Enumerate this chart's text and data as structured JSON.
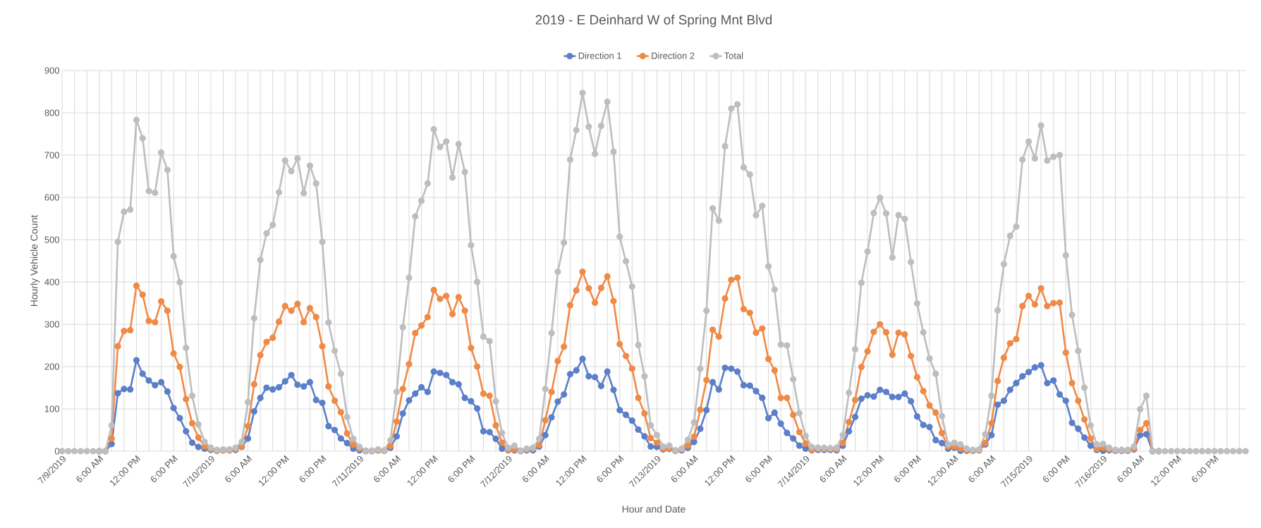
{
  "chart_data": {
    "type": "line",
    "title": "2019 - E Deinhard W of Spring Mnt Blvd",
    "xlabel": "Hour and Date",
    "ylabel": "Hourly Vehicle Count",
    "categories": [
      "7/9/2019",
      null,
      null,
      null,
      null,
      null,
      "6:00 AM",
      null,
      null,
      null,
      null,
      null,
      "12:00 PM",
      null,
      null,
      null,
      null,
      null,
      "6:00 PM",
      null,
      null,
      null,
      null,
      null,
      "7/10/2019",
      null,
      null,
      null,
      null,
      null,
      "6:00 AM",
      null,
      null,
      null,
      null,
      null,
      "12:00 PM",
      null,
      null,
      null,
      null,
      null,
      "6:00 PM",
      null,
      null,
      null,
      null,
      null,
      "7/11/2019",
      null,
      null,
      null,
      null,
      null,
      "6:00 AM",
      null,
      null,
      null,
      null,
      null,
      "12:00 PM",
      null,
      null,
      null,
      null,
      null,
      "6:00 PM",
      null,
      null,
      null,
      null,
      null,
      "7/12/2019",
      null,
      null,
      null,
      null,
      null,
      "6:00 AM",
      null,
      null,
      null,
      null,
      null,
      "12:00 PM",
      null,
      null,
      null,
      null,
      null,
      "6:00 PM",
      null,
      null,
      null,
      null,
      null,
      "7/13/2019",
      null,
      null,
      null,
      null,
      null,
      "6:00 AM",
      null,
      null,
      null,
      null,
      null,
      "12:00 PM",
      null,
      null,
      null,
      null,
      null,
      "6:00 PM",
      null,
      null,
      null,
      null,
      null,
      "7/14/2019",
      null,
      null,
      null,
      null,
      null,
      "6:00 AM",
      null,
      null,
      null,
      null,
      null,
      "12:00 PM",
      null,
      null,
      null,
      null,
      null,
      "6:00 PM",
      null,
      null,
      null,
      null,
      null,
      "12:00 AM",
      null,
      null,
      null,
      null,
      null,
      "6:00 AM",
      null,
      null,
      null,
      null,
      null,
      "7/15/2019",
      null,
      null,
      null,
      null,
      null,
      "6:00 PM",
      null,
      null,
      null,
      null,
      null,
      "7/16/2019",
      null,
      null,
      null,
      null,
      null,
      "6:00 AM",
      null,
      null,
      null,
      null,
      null,
      "12:00 PM",
      null,
      null,
      null,
      null,
      null,
      "6:00 PM",
      null,
      null,
      null,
      null,
      null
    ],
    "series": [
      {
        "name": "Direction 1",
        "color": "#5b7fc8",
        "values": [
          null,
          null,
          null,
          null,
          null,
          null,
          0,
          0,
          17,
          137,
          147,
          146,
          215,
          183,
          167,
          156,
          163,
          141,
          102,
          78,
          47,
          20,
          10,
          6,
          3,
          1,
          2,
          2,
          3,
          10,
          30,
          94,
          126,
          150,
          146,
          151,
          165,
          180,
          157,
          153,
          163,
          121,
          114,
          59,
          50,
          30,
          19,
          6,
          2,
          0,
          0,
          2,
          1,
          8,
          35,
          89,
          120,
          136,
          151,
          140,
          188,
          185,
          180,
          163,
          158,
          126,
          118,
          101,
          47,
          45,
          29,
          6,
          2,
          2,
          0,
          2,
          2,
          11,
          38,
          80,
          117,
          134,
          182,
          191,
          218,
          177,
          175,
          154,
          188,
          145,
          97,
          86,
          72,
          51,
          35,
          11,
          10,
          4,
          5,
          1,
          2,
          8,
          22,
          53,
          97,
          163,
          146,
          197,
          195,
          188,
          156,
          155,
          142,
          126,
          78,
          91,
          65,
          43,
          30,
          13,
          6,
          2,
          3,
          3,
          3,
          2,
          13,
          47,
          81,
          124,
          132,
          129,
          145,
          140,
          128,
          128,
          136,
          118,
          82,
          62,
          57,
          26,
          19,
          6,
          8,
          1,
          1,
          1,
          2,
          16,
          38,
          110,
          119,
          145,
          161,
          177,
          187,
          198,
          203,
          161,
          167,
          134,
          119,
          67,
          53,
          32,
          13,
          3,
          1,
          2,
          1,
          1,
          1,
          4,
          38,
          40,
          0,
          0,
          null,
          null,
          null,
          null,
          null,
          null,
          null,
          null,
          null,
          null,
          null,
          null,
          null,
          null
        ]
      },
      {
        "name": "Direction 2",
        "color": "#ef8a47",
        "values": [
          null,
          null,
          null,
          null,
          null,
          null,
          0,
          0,
          30,
          248,
          284,
          286,
          391,
          370,
          308,
          305,
          354,
          332,
          231,
          199,
          123,
          66,
          32,
          11,
          5,
          2,
          2,
          2,
          5,
          11,
          59,
          158,
          227,
          258,
          268,
          306,
          343,
          332,
          348,
          305,
          338,
          317,
          248,
          153,
          119,
          92,
          42,
          15,
          6,
          1,
          1,
          2,
          1,
          12,
          70,
          147,
          206,
          279,
          297,
          317,
          381,
          360,
          367,
          324,
          364,
          332,
          244,
          200,
          136,
          131,
          61,
          20,
          3,
          4,
          1,
          4,
          6,
          14,
          73,
          140,
          213,
          247,
          345,
          380,
          424,
          385,
          351,
          386,
          413,
          355,
          253,
          225,
          195,
          126,
          89,
          31,
          20,
          6,
          6,
          1,
          4,
          13,
          34,
          98,
          168,
          287,
          271,
          361,
          405,
          410,
          336,
          327,
          280,
          290,
          218,
          191,
          126,
          126,
          86,
          45,
          18,
          3,
          5,
          5,
          5,
          4,
          19,
          69,
          121,
          199,
          236,
          282,
          300,
          281,
          228,
          280,
          276,
          225,
          175,
          142,
          108,
          91,
          43,
          11,
          11,
          6,
          2,
          2,
          2,
          19,
          66,
          166,
          221,
          255,
          265,
          343,
          367,
          347,
          385,
          343,
          350,
          351,
          233,
          161,
          119,
          75,
          30,
          6,
          8,
          4,
          2,
          2,
          2,
          6,
          50,
          66,
          0,
          0,
          null,
          null,
          null,
          null,
          null,
          null,
          null,
          null,
          null,
          null,
          null,
          null,
          null,
          null
        ]
      },
      {
        "name": "Total",
        "color": "#bdbec0",
        "values": [
          0,
          0,
          0,
          0,
          0,
          0,
          0,
          0,
          61,
          495,
          566,
          571,
          783,
          740,
          615,
          611,
          706,
          665,
          461,
          399,
          244,
          131,
          63,
          22,
          8,
          3,
          4,
          4,
          8,
          22,
          116,
          314,
          452,
          515,
          535,
          612,
          687,
          662,
          692,
          610,
          675,
          633,
          495,
          304,
          237,
          183,
          81,
          29,
          10,
          1,
          1,
          4,
          2,
          26,
          140,
          293,
          410,
          555,
          592,
          633,
          761,
          719,
          732,
          647,
          726,
          660,
          487,
          400,
          271,
          260,
          118,
          43,
          8,
          13,
          1,
          6,
          8,
          29,
          147,
          279,
          424,
          493,
          689,
          759,
          847,
          767,
          703,
          769,
          826,
          708,
          507,
          449,
          389,
          251,
          177,
          61,
          38,
          11,
          13,
          2,
          6,
          27,
          68,
          195,
          332,
          574,
          545,
          721,
          810,
          820,
          671,
          654,
          558,
          580,
          437,
          382,
          252,
          250,
          170,
          90,
          36,
          10,
          8,
          8,
          7,
          8,
          38,
          138,
          241,
          398,
          472,
          563,
          599,
          562,
          458,
          558,
          549,
          447,
          349,
          281,
          219,
          183,
          83,
          16,
          20,
          16,
          6,
          3,
          4,
          40,
          131,
          333,
          442,
          509,
          531,
          689,
          732,
          692,
          770,
          687,
          696,
          700,
          463,
          322,
          237,
          150,
          61,
          16,
          17,
          8,
          3,
          3,
          3,
          11,
          99,
          131,
          0,
          0,
          0,
          0,
          0,
          0,
          0,
          0,
          0,
          0,
          0,
          0,
          0,
          0,
          0,
          0
        ]
      }
    ],
    "ylim": [
      0,
      900
    ],
    "yticks": [
      0,
      100,
      200,
      300,
      400,
      500,
      600,
      700,
      800,
      900
    ],
    "grid": true,
    "legend": "top",
    "marker": "circle",
    "line_style": "solid"
  }
}
